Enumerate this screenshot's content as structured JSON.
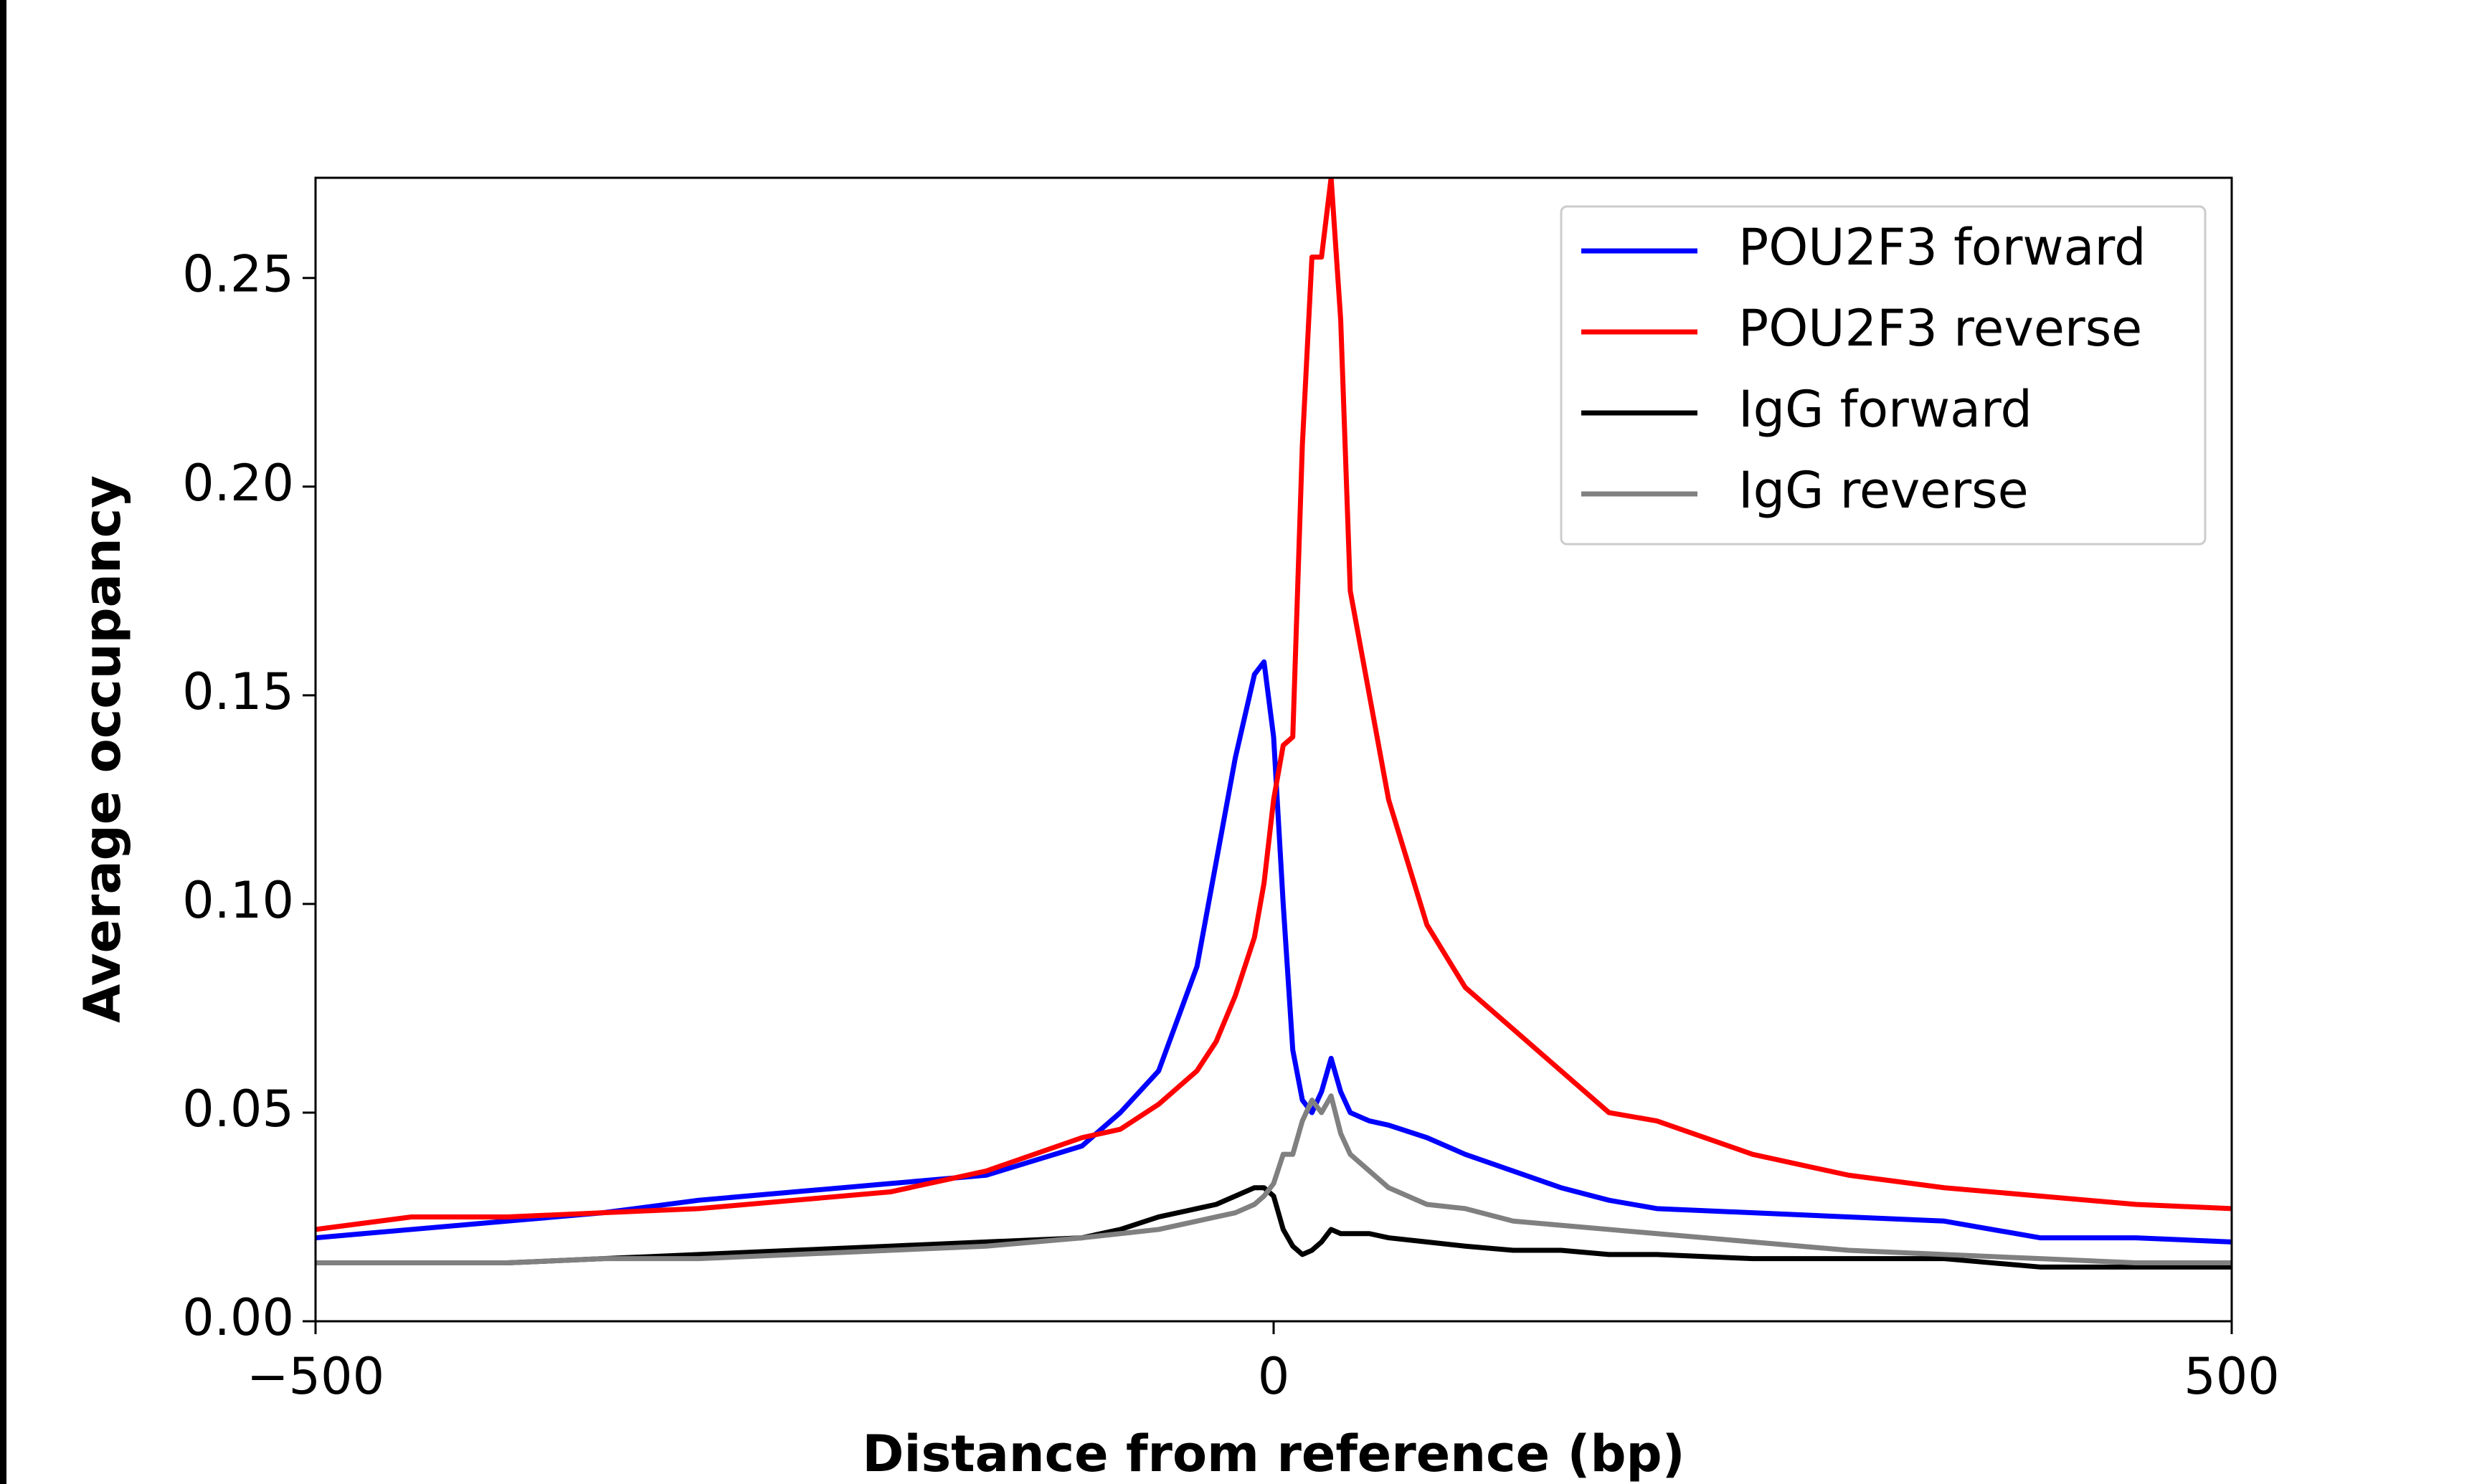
{
  "chart_data": {
    "type": "line",
    "xlabel": "Distance from reference (bp)",
    "ylabel": "Average occupancy",
    "x": [
      -500,
      -450,
      -400,
      -350,
      -300,
      -250,
      -200,
      -150,
      -100,
      -80,
      -60,
      -40,
      -30,
      -20,
      -10,
      -5,
      0,
      5,
      10,
      15,
      20,
      25,
      30,
      35,
      40,
      50,
      60,
      80,
      100,
      125,
      150,
      175,
      200,
      250,
      300,
      350,
      400,
      450,
      500
    ],
    "series": [
      {
        "name": "POU2F3 forward",
        "color": "#0000ff",
        "values": [
          0.02,
          0.022,
          0.024,
          0.026,
          0.029,
          0.031,
          0.033,
          0.035,
          0.042,
          0.05,
          0.06,
          0.085,
          0.11,
          0.135,
          0.155,
          0.158,
          0.14,
          0.1,
          0.065,
          0.053,
          0.05,
          0.055,
          0.063,
          0.055,
          0.05,
          0.048,
          0.047,
          0.044,
          0.04,
          0.036,
          0.032,
          0.029,
          0.027,
          0.026,
          0.025,
          0.024,
          0.02,
          0.02,
          0.019
        ]
      },
      {
        "name": "POU2F3 reverse",
        "color": "#ff0000",
        "values": [
          0.022,
          0.025,
          0.025,
          0.026,
          0.027,
          0.029,
          0.031,
          0.036,
          0.044,
          0.046,
          0.052,
          0.06,
          0.067,
          0.078,
          0.092,
          0.105,
          0.125,
          0.138,
          0.14,
          0.21,
          0.255,
          0.255,
          0.274,
          0.24,
          0.175,
          0.15,
          0.125,
          0.095,
          0.08,
          0.07,
          0.06,
          0.05,
          0.048,
          0.04,
          0.035,
          0.032,
          0.03,
          0.028,
          0.027
        ]
      },
      {
        "name": "IgG forward",
        "color": "#000000",
        "values": [
          0.014,
          0.014,
          0.014,
          0.015,
          0.016,
          0.017,
          0.018,
          0.019,
          0.02,
          0.022,
          0.025,
          0.027,
          0.028,
          0.03,
          0.032,
          0.032,
          0.03,
          0.022,
          0.018,
          0.016,
          0.017,
          0.019,
          0.022,
          0.021,
          0.021,
          0.021,
          0.02,
          0.019,
          0.018,
          0.017,
          0.017,
          0.016,
          0.016,
          0.015,
          0.015,
          0.015,
          0.013,
          0.013,
          0.013
        ]
      },
      {
        "name": "IgG reverse",
        "color": "#808080",
        "values": [
          0.014,
          0.014,
          0.014,
          0.015,
          0.015,
          0.016,
          0.017,
          0.018,
          0.02,
          0.021,
          0.022,
          0.024,
          0.025,
          0.026,
          0.028,
          0.03,
          0.033,
          0.04,
          0.04,
          0.048,
          0.053,
          0.05,
          0.054,
          0.045,
          0.04,
          0.036,
          0.032,
          0.028,
          0.027,
          0.024,
          0.023,
          0.022,
          0.021,
          0.019,
          0.017,
          0.016,
          0.015,
          0.014,
          0.014
        ]
      }
    ],
    "xlim": [
      -500,
      500
    ],
    "xticks": [
      {
        "value": -500,
        "label": "−500"
      },
      0,
      500
    ],
    "ylim": [
      0,
      0.274
    ],
    "yticks": [
      {
        "value": 0,
        "label": "0.00"
      },
      {
        "value": 0.05,
        "label": "0.05"
      },
      {
        "value": 0.1,
        "label": "0.10"
      },
      {
        "value": 0.15,
        "label": "0.15"
      },
      {
        "value": 0.2,
        "label": "0.20"
      },
      {
        "value": 0.25,
        "label": "0.25"
      }
    ],
    "grid": false,
    "legend": "upper right"
  }
}
